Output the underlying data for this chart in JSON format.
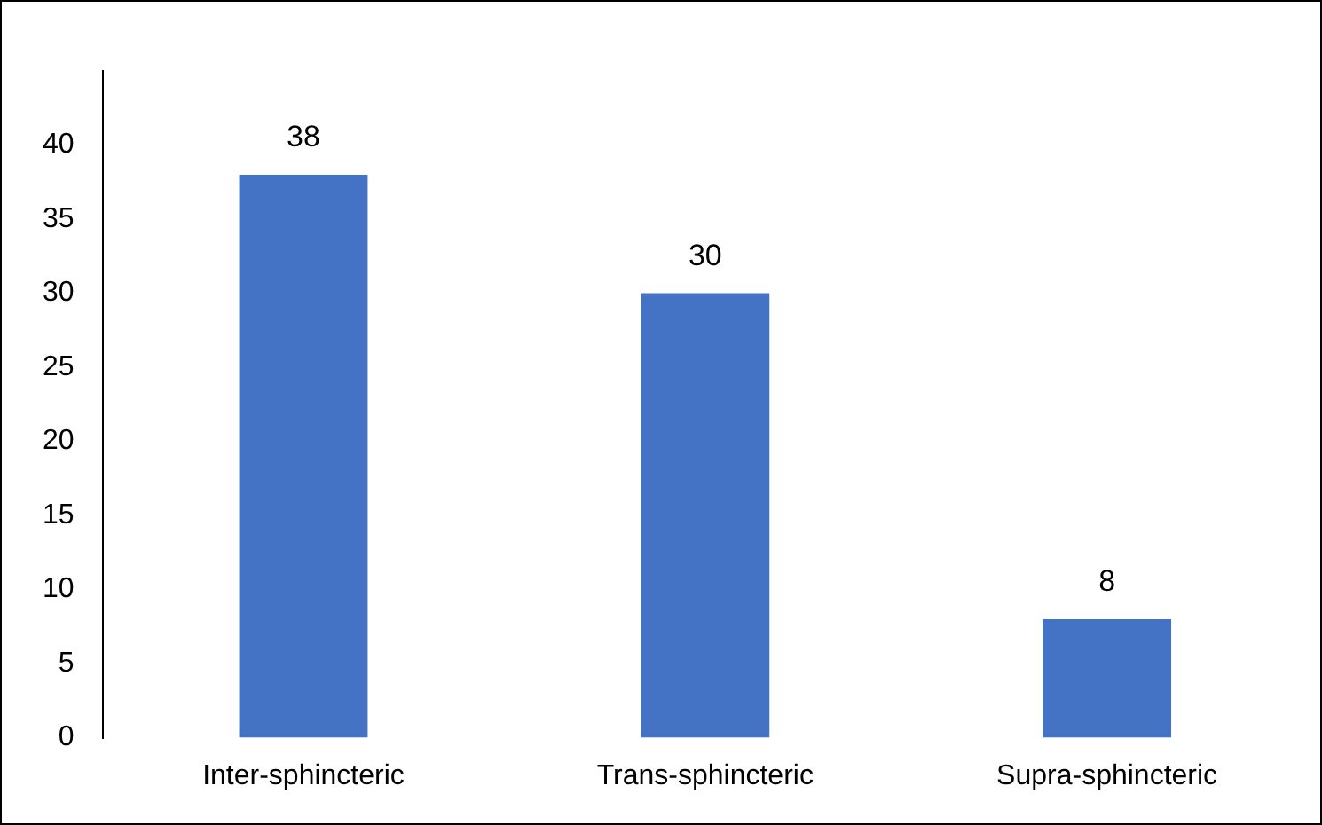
{
  "chart_data": {
    "type": "bar",
    "categories": [
      "Inter-sphincteric",
      "Trans-sphincteric",
      "Supra-sphincteric"
    ],
    "values": [
      38,
      30,
      8
    ],
    "color": "#4472c4",
    "ylim": [
      0,
      45
    ],
    "yticks": [
      0,
      5,
      10,
      15,
      20,
      25,
      30,
      35,
      40
    ],
    "grid": false,
    "legend": false,
    "data_labels": true
  }
}
